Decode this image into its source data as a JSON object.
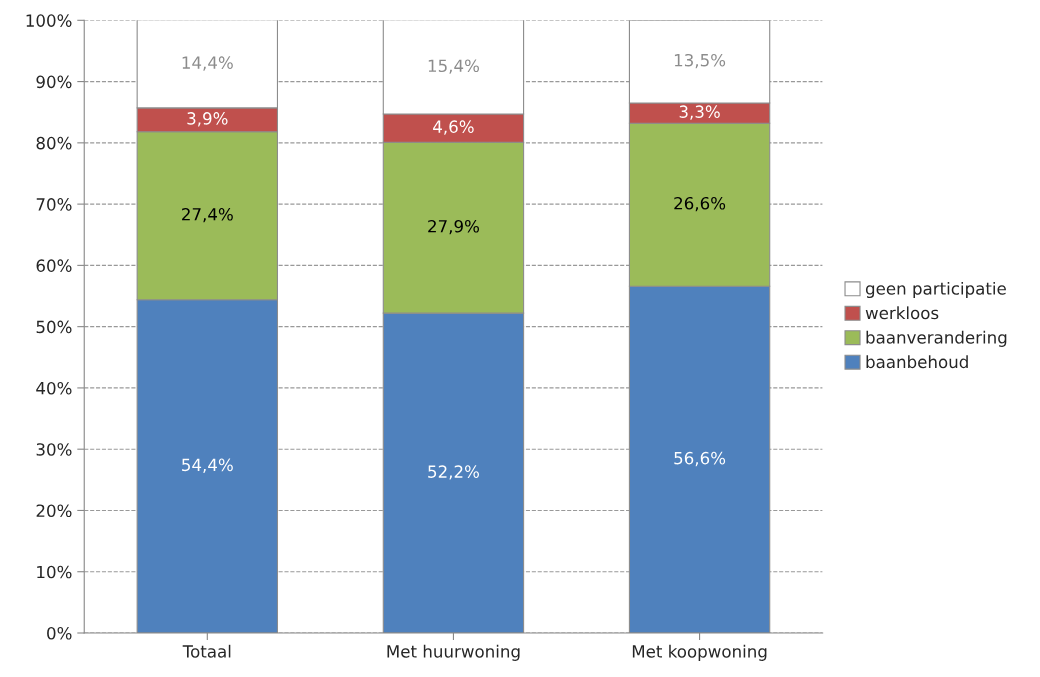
{
  "chart_data": {
    "type": "bar",
    "stacked": true,
    "categories": [
      "Totaal",
      "Met huurwoning",
      "Met koopwoning"
    ],
    "series": [
      {
        "name": "baanbehoud",
        "color": "#4f81bd",
        "values": [
          54.4,
          52.2,
          56.6
        ],
        "value_labels": [
          "54,4%",
          "52,2%",
          "56,6%"
        ]
      },
      {
        "name": "baanverandering",
        "color": "#9bbb59",
        "values": [
          27.4,
          27.9,
          26.6
        ],
        "value_labels": [
          "27,4%",
          "27,9%",
          "26,6%"
        ]
      },
      {
        "name": "werkloos",
        "color": "#c0504d",
        "values": [
          3.9,
          4.6,
          3.3
        ],
        "value_labels": [
          "3,9%",
          "4,6%",
          "3,3%"
        ]
      },
      {
        "name": "geen participatie",
        "color": "#ffffff",
        "values": [
          14.4,
          15.4,
          13.5
        ],
        "value_labels": [
          "14,4%",
          "15,4%",
          "13,5%"
        ]
      }
    ],
    "ylim": [
      0,
      100
    ],
    "yticks": [
      {
        "value": 0,
        "label": "0%"
      },
      {
        "value": 10,
        "label": "10%"
      },
      {
        "value": 20,
        "label": "20%"
      },
      {
        "value": 30,
        "label": "30%"
      },
      {
        "value": 40,
        "label": "40%"
      },
      {
        "value": 50,
        "label": "50%"
      },
      {
        "value": 60,
        "label": "60%"
      },
      {
        "value": 70,
        "label": "70%"
      },
      {
        "value": 80,
        "label": "80%"
      },
      {
        "value": 90,
        "label": "90%"
      },
      {
        "value": 100,
        "label": "100%"
      }
    ],
    "grid": "y",
    "legend": "right"
  }
}
